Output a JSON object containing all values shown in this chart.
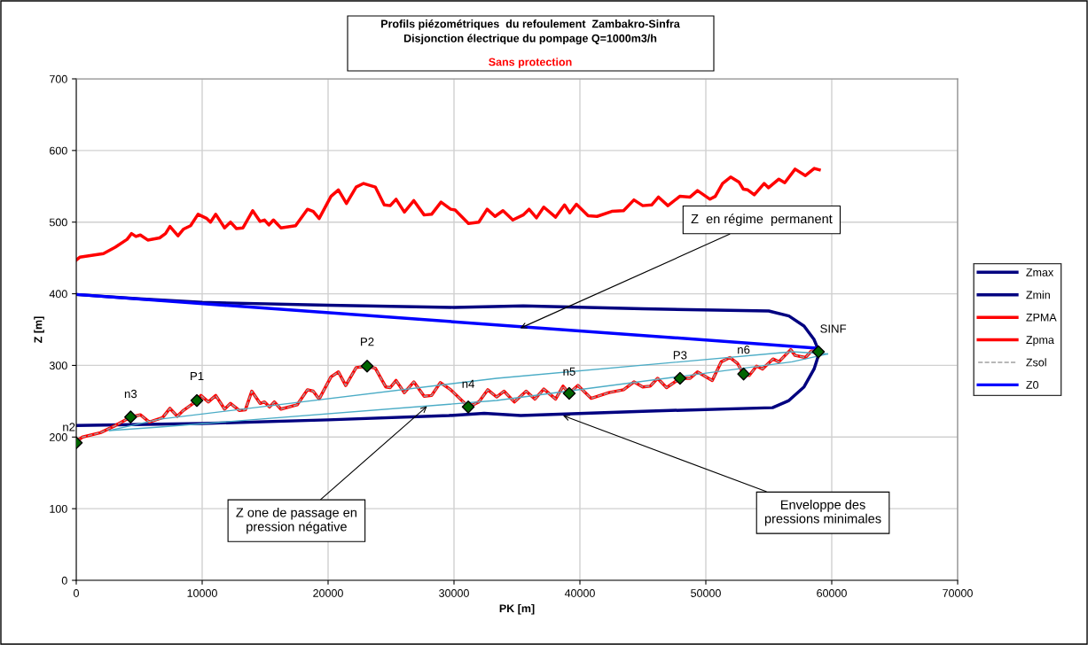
{
  "chart_data": {
    "type": "line",
    "title": "Profils piézométriques  du refoulement  Zambakro-Sinfra\nDisjonction électrique du pompage Q=1000m3/h",
    "subtitle": "Sans protection",
    "xlabel": "PK [m]",
    "ylabel": "Z [m]",
    "xlim": [
      0,
      70000
    ],
    "xticks": [
      0,
      10000,
      20000,
      30000,
      40000,
      50000,
      60000,
      70000
    ],
    "ylim": [
      0,
      700
    ],
    "yticks": [
      0,
      100,
      200,
      300,
      400,
      500,
      600,
      700
    ],
    "grid": true,
    "legend": "right",
    "series": [
      {
        "name": "Zmax",
        "color": "#000080",
        "x": [
          0,
          5000,
          10000,
          20000,
          30000,
          35500,
          45000,
          55000,
          56600,
          57800,
          58600,
          59000
        ],
        "values": [
          399,
          393,
          388,
          384,
          381,
          383,
          379,
          376,
          369,
          355,
          336,
          319
        ]
      },
      {
        "name": "Zmin",
        "color": "#000080",
        "x": [
          0,
          10000,
          20000,
          29600,
          32400,
          35300,
          45000,
          55300,
          56600,
          57800,
          58600,
          59000
        ],
        "values": [
          216,
          219,
          224,
          230,
          233,
          230,
          236,
          241,
          251,
          270,
          295,
          317
        ]
      },
      {
        "name": "ZPMA",
        "color": "#ff0000",
        "x": [
          0,
          280,
          2160,
          3100,
          4040,
          4390,
          4740,
          5090,
          5680,
          6620,
          7090,
          7440,
          8080,
          8500,
          9080,
          9670,
          10370,
          10660,
          11080,
          11780,
          12250,
          12720,
          13240,
          14010,
          14600,
          14950,
          15300,
          15660,
          16250,
          17420,
          18360,
          18820,
          19290,
          20230,
          20820,
          21460,
          22230,
          22820,
          23750,
          24460,
          24930,
          25400,
          26060,
          26810,
          27630,
          28220,
          28970,
          29740,
          30090,
          31150,
          31970,
          32630,
          33260,
          33890,
          34670,
          35490,
          35960,
          36550,
          37130,
          38070,
          38780,
          39200,
          39720,
          40650,
          41360,
          42530,
          43470,
          44290,
          44990,
          45700,
          46240,
          46990,
          47930,
          48750,
          49340,
          50330,
          50750,
          51330,
          51970,
          52630,
          52980,
          53330,
          53850,
          54630,
          54980,
          55800,
          56270,
          57090,
          57910,
          58610,
          59010
        ],
        "values": [
          447,
          451,
          456,
          465,
          476,
          484,
          480,
          482,
          475,
          478,
          484,
          494,
          481,
          490,
          495,
          511,
          505,
          500,
          511,
          492,
          500,
          491,
          492,
          516,
          501,
          503,
          496,
          503,
          492,
          495,
          518,
          515,
          505,
          536,
          545,
          526,
          549,
          554,
          549,
          524,
          523,
          532,
          514,
          530,
          510,
          511,
          528,
          518,
          517,
          498,
          500,
          518,
          508,
          516,
          503,
          510,
          518,
          506,
          521,
          507,
          524,
          513,
          525,
          509,
          508,
          515,
          516,
          531,
          523,
          524,
          535,
          523,
          536,
          535,
          544,
          532,
          536,
          554,
          563,
          556,
          546,
          545,
          538,
          554,
          548,
          560,
          555,
          574,
          565,
          575,
          573
        ]
      },
      {
        "name": "Zpma",
        "color": "#ff0000",
        "x": [
          0,
          510,
          1920,
          3100,
          4320,
          5090,
          5800,
          6850,
          7440,
          8030,
          8500,
          9600,
          9900,
          10490,
          11080,
          11780,
          12250,
          12960,
          13430,
          13940,
          14600,
          14950,
          15350,
          15730,
          16250,
          17540,
          18360,
          18820,
          19290,
          20230,
          20820,
          21400,
          22230,
          23100,
          23750,
          24580,
          24930,
          25400,
          26060,
          26810,
          27630,
          28220,
          28920,
          29740,
          31150,
          31970,
          32680,
          33380,
          33970,
          34790,
          35730,
          36430,
          37130,
          38070,
          38660,
          39130,
          39840,
          40890,
          42300,
          43470,
          44290,
          44990,
          45580,
          46170,
          46880,
          47980,
          48750,
          49340,
          50510,
          51220,
          51920,
          52510,
          53000,
          53450,
          54030,
          54500,
          55330,
          55800,
          56740,
          57090,
          57910,
          58380,
          58960
        ],
        "values": [
          194,
          200,
          206,
          216,
          228,
          231,
          221,
          227,
          240,
          229,
          237,
          251,
          258,
          249,
          258,
          239,
          247,
          237,
          238,
          264,
          247,
          249,
          242,
          249,
          239,
          245,
          266,
          264,
          253,
          284,
          291,
          272,
          297,
          299,
          296,
          270,
          269,
          279,
          262,
          277,
          257,
          258,
          276,
          266,
          242,
          249,
          266,
          256,
          264,
          249,
          264,
          253,
          267,
          253,
          271,
          261,
          272,
          254,
          262,
          266,
          277,
          270,
          271,
          282,
          269,
          282,
          282,
          291,
          279,
          305,
          311,
          303,
          288,
          286,
          299,
          295,
          309,
          305,
          322,
          314,
          311,
          320,
          320
        ]
      },
      {
        "name": "Zsol",
        "color": "#a0a0a0",
        "line_style": "dashed",
        "x": [
          0,
          510,
          1920,
          3100,
          4320,
          5090,
          5800,
          6850,
          7440,
          8030,
          8500,
          9600,
          9900,
          10490,
          11080,
          11780,
          12250,
          12960,
          13430,
          13940,
          14600,
          14950,
          15350,
          15730,
          16250,
          17540,
          18360,
          18820,
          19290,
          20230,
          20820,
          21400,
          22230,
          23100,
          23750,
          24580,
          24930,
          25400,
          26060,
          26810,
          27630,
          28220,
          28920,
          29740,
          31150,
          31970,
          32680,
          33380,
          33970,
          34790,
          35730,
          36430,
          37130,
          38070,
          38660,
          39130,
          39840,
          40890,
          42300,
          43470,
          44290,
          44990,
          45580,
          46170,
          46880,
          47980,
          48750,
          49340,
          50510,
          51220,
          51920,
          52510,
          53000,
          53450,
          54030,
          54500,
          55330,
          55800,
          56740,
          57090,
          57910,
          58380,
          58960
        ],
        "values": [
          194,
          200,
          206,
          216,
          228,
          231,
          221,
          227,
          240,
          229,
          237,
          251,
          258,
          249,
          258,
          239,
          247,
          237,
          238,
          264,
          247,
          249,
          242,
          249,
          239,
          245,
          266,
          264,
          253,
          284,
          291,
          272,
          297,
          299,
          296,
          270,
          269,
          279,
          262,
          277,
          257,
          258,
          276,
          266,
          242,
          249,
          266,
          256,
          264,
          249,
          264,
          253,
          267,
          253,
          271,
          261,
          272,
          254,
          262,
          266,
          277,
          270,
          271,
          282,
          269,
          282,
          282,
          291,
          279,
          305,
          311,
          303,
          288,
          286,
          299,
          295,
          309,
          305,
          322,
          314,
          311,
          320,
          320
        ]
      },
      {
        "name": "Z0",
        "color": "#0000ff",
        "x": [
          0,
          58960
        ],
        "values": [
          399,
          324
        ]
      },
      {
        "type": "line",
        "color": "#4bacc6",
        "x": [
          2630,
          6620,
          33380,
          56850,
          59670
        ],
        "values": [
          209,
          225,
          282,
          319,
          316
        ]
      },
      {
        "type": "line",
        "color": "#4bacc6",
        "x": [
          2630,
          6620,
          33380,
          56850,
          59670
        ],
        "values": [
          209,
          214,
          251,
          305,
          316
        ]
      },
      {
        "type": "scatter",
        "color": "#006400",
        "marker": "diamond",
        "x": [
          0,
          4320,
          9580,
          23100,
          31130,
          39150,
          47950,
          53000,
          58940
        ],
        "values": [
          192,
          228,
          251,
          299,
          242,
          261,
          282,
          288,
          319
        ]
      }
    ],
    "annotations": [
      {
        "text": "n2",
        "x": 0,
        "y": 192
      },
      {
        "text": "n3",
        "x": 4320,
        "y": 228
      },
      {
        "text": "P1",
        "x": 9580,
        "y": 251
      },
      {
        "text": "P2",
        "x": 23100,
        "y": 299
      },
      {
        "text": "n4",
        "x": 31130,
        "y": 242
      },
      {
        "text": "n5",
        "x": 39150,
        "y": 261
      },
      {
        "text": "P3",
        "x": 47950,
        "y": 282
      },
      {
        "text": "n6",
        "x": 53000,
        "y": 288
      },
      {
        "text": "SINF",
        "x": 58940,
        "y": 319
      },
      {
        "text": "Z  en régime  permanent",
        "x": 35260,
        "y": 352
      },
      {
        "text": "Z one de passage en\npression négative",
        "x": 27860,
        "y": 243
      },
      {
        "text": "Enveloppe des\npressions minimales",
        "x": 38660,
        "y": 230
      }
    ]
  }
}
